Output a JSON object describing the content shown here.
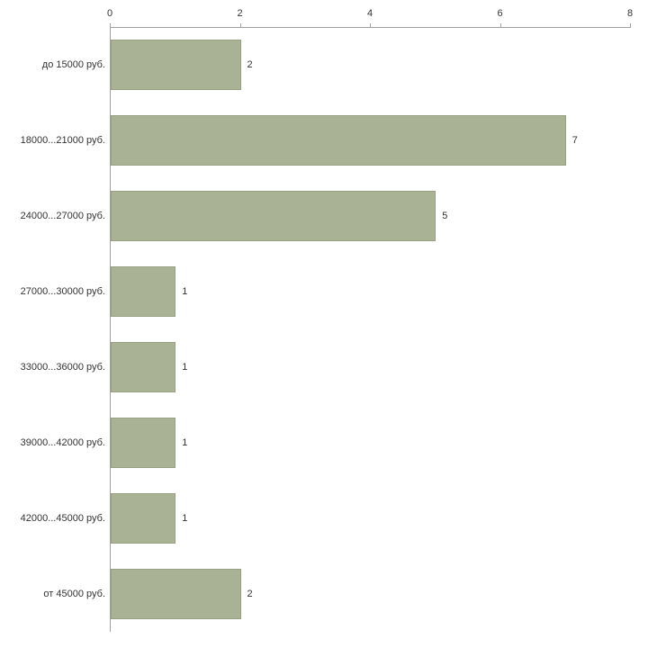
{
  "chart_data": {
    "type": "bar",
    "orientation": "horizontal",
    "title": "",
    "xlabel": "",
    "ylabel": "",
    "categories": [
      "до 15000 руб.",
      "18000...21000 руб.",
      "24000...27000 руб.",
      "27000...30000 руб.",
      "33000...36000 руб.",
      "39000...42000 руб.",
      "42000...45000 руб.",
      "от 45000 руб."
    ],
    "values": [
      2,
      7,
      5,
      1,
      1,
      1,
      1,
      2
    ],
    "value_labels": [
      "2",
      "7",
      "5",
      "1",
      "1",
      "1",
      "1",
      "2"
    ],
    "xlim": [
      0,
      8
    ],
    "x_ticks": [
      "0",
      "2",
      "4",
      "6",
      "8"
    ],
    "grid": false,
    "legend": "none",
    "axis_position": "top-left",
    "colors": {
      "bar_fill": "#a9b294",
      "bar_border": "#96a182",
      "axis": "#a0a0a0",
      "text": "#333333",
      "background": "#ffffff"
    }
  }
}
